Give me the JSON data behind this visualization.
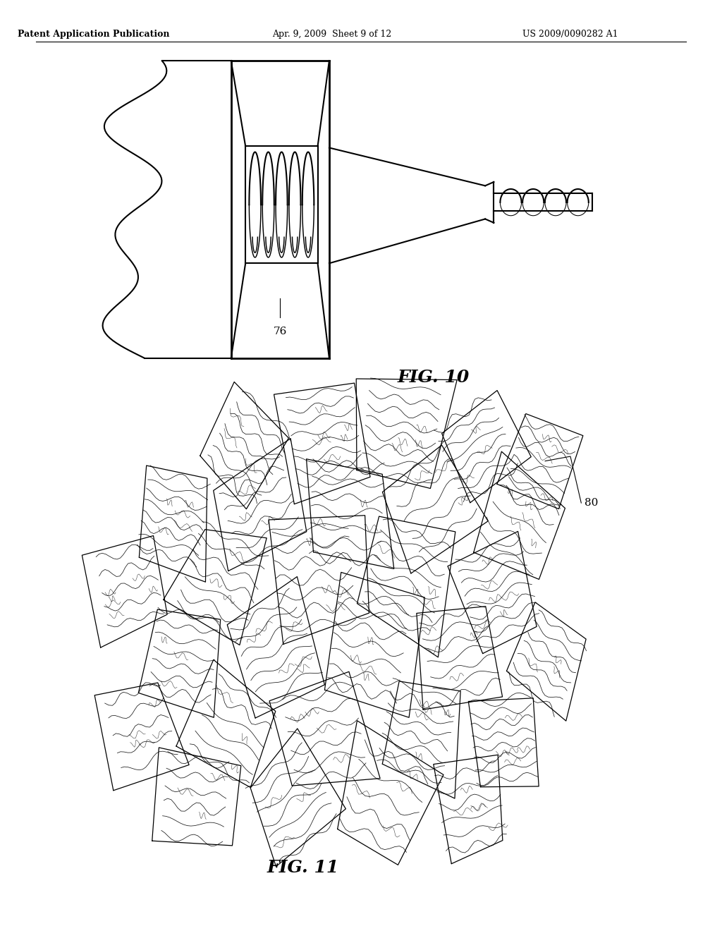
{
  "bg_color": "#ffffff",
  "text_color": "#000000",
  "header_left": "Patent Application Publication",
  "header_mid": "Apr. 9, 2009  Sheet 9 of 12",
  "header_right": "US 2009/0090282 A1",
  "fig10_label": "FIG. 10",
  "fig11_label": "FIG. 11",
  "ref76": "76",
  "ref80": "80",
  "line_color": "#000000",
  "line_width": 1.5,
  "page_width": 10.24,
  "page_height": 13.2
}
